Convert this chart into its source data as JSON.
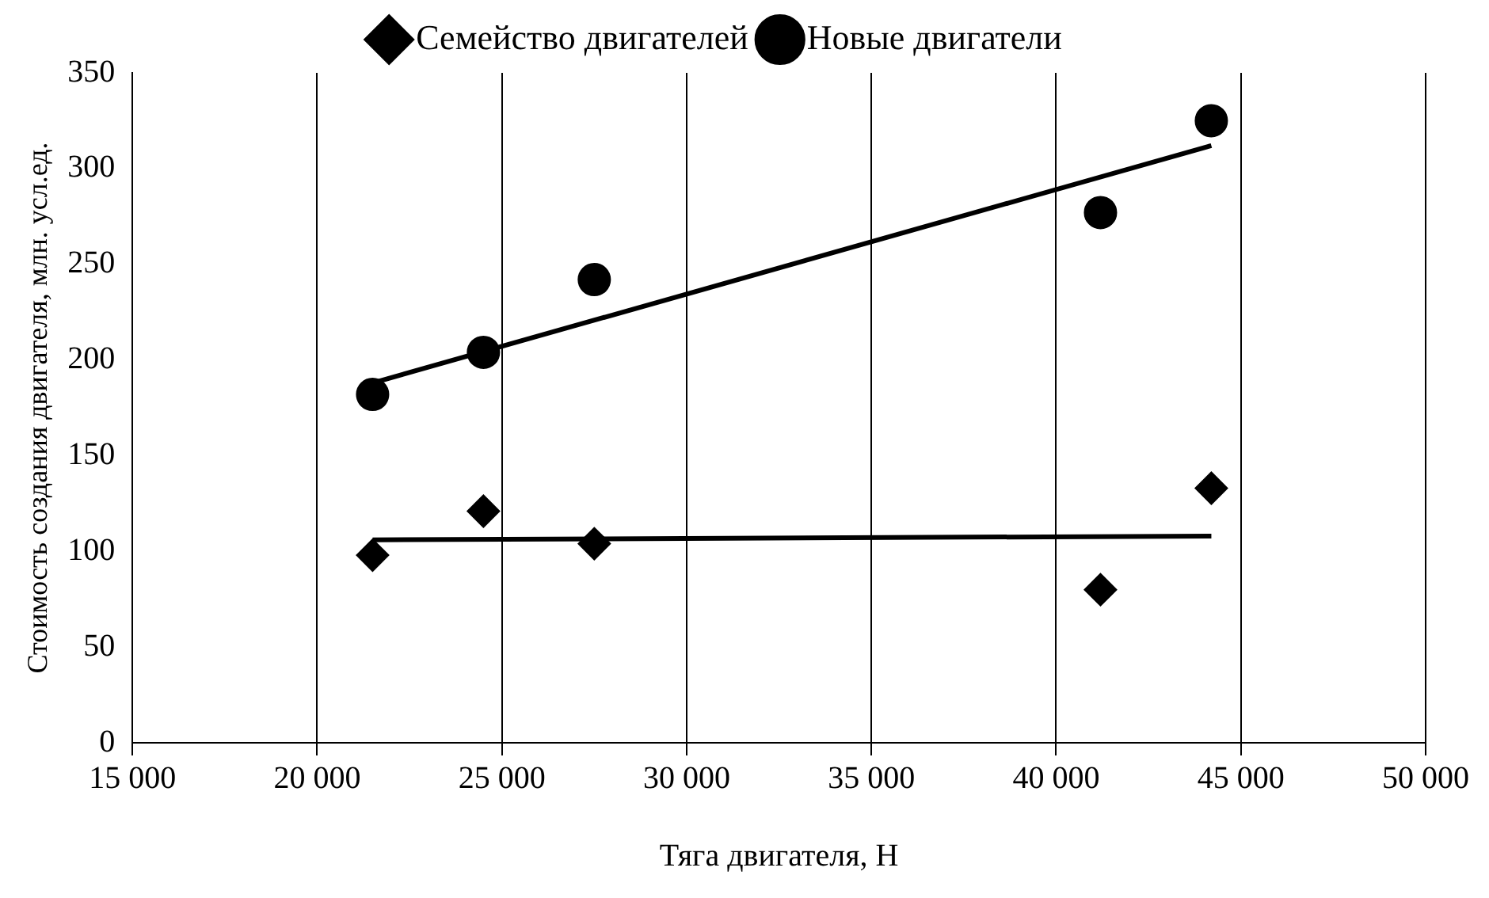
{
  "chart_data": {
    "type": "scatter",
    "xlabel": "Тяга двигателя, Н",
    "ylabel": "Стоимость создания двигателя, млн. усл.ед.",
    "xlim": [
      15000,
      50000
    ],
    "xticks": [
      {
        "value": 15000,
        "label": "15 000"
      },
      {
        "value": 20000,
        "label": "20 000"
      },
      {
        "value": 25000,
        "label": "25 000"
      },
      {
        "value": 30000,
        "label": "30 000"
      },
      {
        "value": 35000,
        "label": "35 000"
      },
      {
        "value": 40000,
        "label": "40 000"
      },
      {
        "value": 45000,
        "label": "45 000"
      },
      {
        "value": 50000,
        "label": "50 000"
      }
    ],
    "ylim": [
      0,
      350
    ],
    "yticks": [
      0,
      50,
      100,
      150,
      200,
      250,
      300,
      350
    ],
    "grid": "x",
    "legend": "top",
    "series": [
      {
        "name": "Семейство двигателей",
        "color": "#000000",
        "marker": "diamond",
        "x": [
          21500,
          24500,
          27500,
          41200,
          44200
        ],
        "values": [
          98,
          121,
          104,
          80,
          133
        ]
      },
      {
        "name": "Новые двигатели",
        "color": "#000000",
        "marker": "circle",
        "x": [
          21500,
          24500,
          27500,
          41200,
          44200
        ],
        "values": [
          182,
          204,
          242,
          277,
          325
        ]
      },
      {
        "type": "line",
        "color": "#000000",
        "marker": "none",
        "x": [
          21500,
          44200
        ],
        "values": [
          106,
          108
        ]
      },
      {
        "type": "line",
        "color": "#000000",
        "marker": "none",
        "x": [
          21500,
          44200
        ],
        "values": [
          188,
          312
        ]
      }
    ]
  }
}
